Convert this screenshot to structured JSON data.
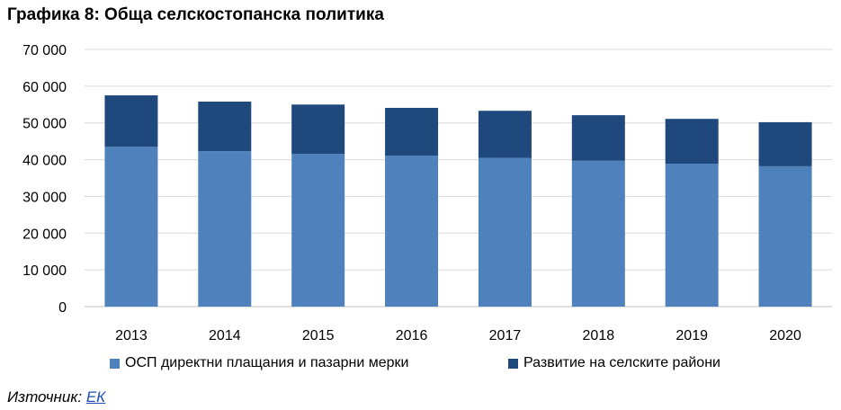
{
  "title": "Графика 8: Обща селскостопанска политика",
  "source": {
    "label": "Източник:",
    "link_text": "ЕК"
  },
  "colors": {
    "series1": "#4f81bd",
    "series2": "#1f497d",
    "grid": "#d9d9d9"
  },
  "chart_data": {
    "type": "bar",
    "stacked": true,
    "title": "Графика 8: Обща селскостопанска политика",
    "xlabel": "",
    "ylabel": "",
    "categories": [
      "2013",
      "2014",
      "2015",
      "2016",
      "2017",
      "2018",
      "2019",
      "2020"
    ],
    "ylim": [
      0,
      70000
    ],
    "yticks": [
      "0",
      "10 000",
      "20 000",
      "30 000",
      "40 000",
      "50 000",
      "60 000",
      "70 000"
    ],
    "grid": true,
    "legend_position": "bottom",
    "series": [
      {
        "name": "ОСП директни плащания и пазарни мерки",
        "values": [
          43500,
          42300,
          41600,
          41100,
          40500,
          39700,
          38900,
          38200
        ]
      },
      {
        "name": "Развитие на селските райони",
        "values": [
          14000,
          13500,
          13400,
          13000,
          12800,
          12400,
          12200,
          12000
        ]
      }
    ]
  }
}
